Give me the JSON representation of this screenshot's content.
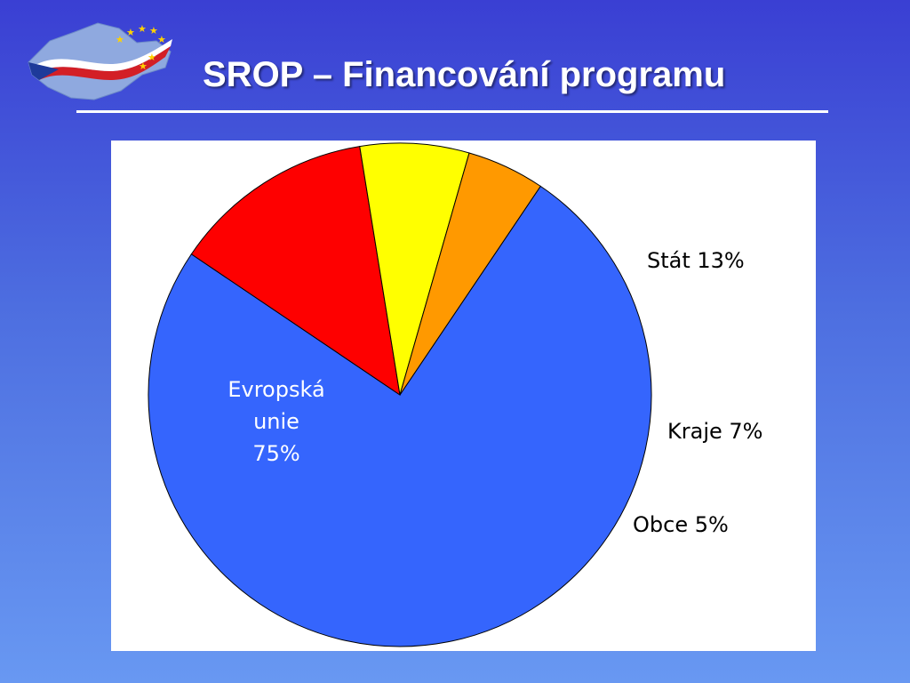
{
  "slide": {
    "title": "SROP – Financování programu"
  },
  "logo": {
    "icon": "czech-eu-map-logo",
    "colors": {
      "map": "#8fa9df",
      "red": "#d31f26",
      "white": "#ffffff",
      "blue": "#1e3a9a",
      "stars": "#ffd200"
    }
  },
  "chart_data": {
    "type": "pie",
    "title": "",
    "slices": [
      {
        "label_lines": [
          "Evropská",
          "unie",
          "75%"
        ],
        "value": 75,
        "color": "#3565fd",
        "label_inside": true
      },
      {
        "label_lines": [
          "Stát 13%"
        ],
        "value": 13,
        "color": "#fe0000",
        "label_inside": false
      },
      {
        "label_lines": [
          "Kraje 7%"
        ],
        "value": 7,
        "color": "#ffff00",
        "label_inside": false
      },
      {
        "label_lines": [
          "Obce 5%"
        ],
        "value": 5,
        "color": "#ff9900",
        "label_inside": false
      }
    ]
  }
}
